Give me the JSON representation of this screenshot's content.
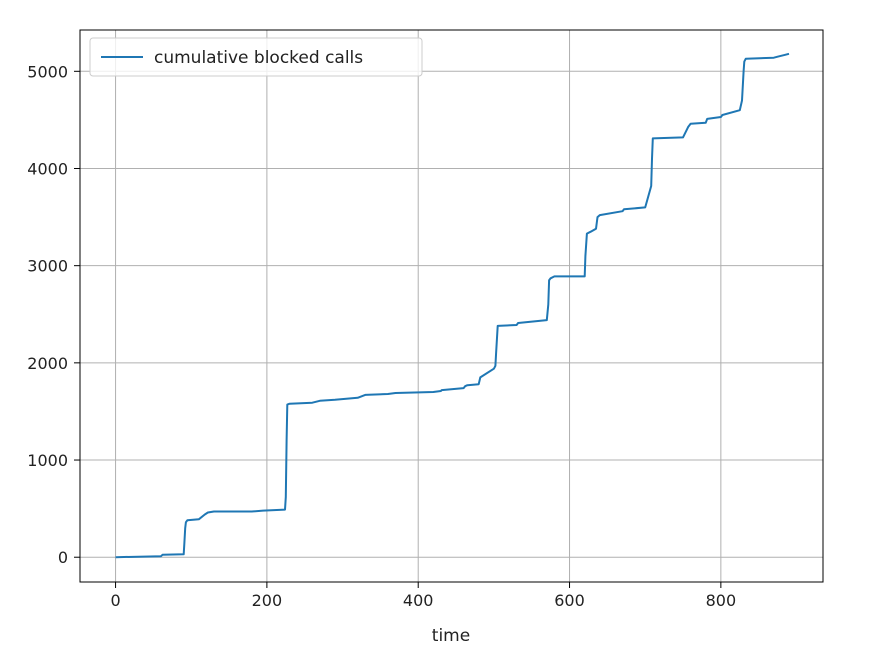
{
  "chart_data": {
    "type": "line",
    "title": "",
    "xlabel": "time",
    "ylabel": "",
    "xlim": [
      -47,
      935
    ],
    "ylim": [
      -255,
      5425
    ],
    "xticks": [
      0,
      200,
      400,
      600,
      800
    ],
    "yticks": [
      0,
      1000,
      2000,
      3000,
      4000,
      5000
    ],
    "xtick_labels": [
      "0",
      "200",
      "400",
      "600",
      "800"
    ],
    "ytick_labels": [
      "0",
      "1000",
      "2000",
      "3000",
      "4000",
      "5000"
    ],
    "grid": true,
    "legend_position": "top-left",
    "series": [
      {
        "name": "cumulative blocked calls",
        "color": "#1f77b4",
        "x": [
          0,
          60,
          62,
          90,
          91,
          92,
          93,
          95,
          110,
          118,
          122,
          130,
          180,
          195,
          224,
          225,
          226,
          227,
          230,
          260,
          270,
          290,
          320,
          330,
          360,
          370,
          420,
          430,
          431,
          460,
          462,
          465,
          480,
          482,
          500,
          502,
          503,
          505,
          530,
          532,
          570,
          572,
          573,
          575,
          580,
          620,
          621,
          623,
          628,
          635,
          637,
          640,
          670,
          672,
          700,
          708,
          709,
          710,
          750,
          757,
          760,
          780,
          782,
          800,
          802,
          825,
          828,
          830,
          831,
          833,
          870,
          875,
          885,
          890
        ],
        "y": [
          0,
          10,
          25,
          30,
          150,
          300,
          360,
          380,
          390,
          440,
          460,
          470,
          470,
          480,
          490,
          620,
          1200,
          1570,
          1580,
          1590,
          1610,
          1620,
          1640,
          1670,
          1680,
          1690,
          1700,
          1710,
          1720,
          1740,
          1760,
          1770,
          1780,
          1850,
          1940,
          1970,
          2100,
          2380,
          2390,
          2410,
          2440,
          2600,
          2850,
          2870,
          2890,
          2890,
          3100,
          3330,
          3350,
          3380,
          3500,
          3520,
          3560,
          3580,
          3600,
          3820,
          4100,
          4310,
          4320,
          4430,
          4460,
          4470,
          4510,
          4530,
          4550,
          4600,
          4700,
          5000,
          5100,
          5130,
          5140,
          5150,
          5170,
          5180
        ]
      }
    ]
  }
}
